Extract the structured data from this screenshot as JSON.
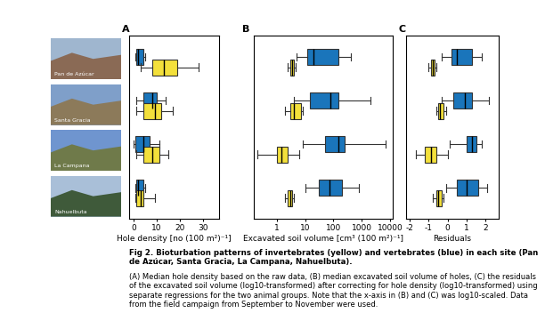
{
  "sites": [
    "Pan de Azúcar",
    "Santa Gracia",
    "La Campana",
    "Nahuelbuta"
  ],
  "chart_data": [
    {
      "type": "boxplot",
      "title": "A",
      "xlabel": "Hole density [no (100 m²)⁻¹]",
      "orientation": "horizontal",
      "tick_labels": "x",
      "xlim": [
        -2,
        37
      ],
      "xticks": [
        0,
        10,
        20,
        30
      ],
      "series": [
        {
          "color": "#1a75bb",
          "values": [
            {
              "whislo": 0.5,
              "q1": 1,
              "med": 2,
              "q3": 4,
              "whishi": 5
            },
            {
              "whislo": 1,
              "q1": 4,
              "med": 8,
              "q3": 10,
              "whishi": 14
            },
            {
              "whislo": 0,
              "q1": 0.5,
              "med": 4,
              "q3": 7,
              "whishi": 11
            },
            {
              "whislo": 0.5,
              "q1": 1,
              "med": 2,
              "q3": 4,
              "whishi": 5
            }
          ]
        },
        {
          "color": "#f3e03b",
          "values": [
            {
              "whislo": 3,
              "q1": 8,
              "med": 13,
              "q3": 19,
              "whishi": 28
            },
            {
              "whislo": 1,
              "q1": 4,
              "med": 9,
              "q3": 12,
              "whishi": 17
            },
            {
              "whislo": 1,
              "q1": 4,
              "med": 8,
              "q3": 11,
              "whishi": 15
            },
            {
              "whislo": 0.5,
              "q1": 1,
              "med": 3,
              "q3": 4,
              "whishi": 9
            }
          ]
        }
      ]
    },
    {
      "type": "boxplot",
      "title": "B",
      "xlabel": "Excavated soil volume [cm³ (100 m²)⁻¹]",
      "orientation": "horizontal",
      "tick_labels": "x",
      "log": "x",
      "xlim": [
        0.15,
        12000
      ],
      "xticks": [
        1,
        10,
        100,
        1000,
        10000
      ],
      "series": [
        {
          "color": "#1a75bb",
          "values": [
            {
              "whislo": 5,
              "q1": 12,
              "med": 20,
              "q3": 150,
              "whishi": 400
            },
            {
              "whislo": 4,
              "q1": 15,
              "med": 80,
              "q3": 150,
              "whishi": 2000
            },
            {
              "whislo": 8,
              "q1": 50,
              "med": 150,
              "q3": 250,
              "whishi": 7000
            },
            {
              "whislo": 10,
              "q1": 30,
              "med": 70,
              "q3": 200,
              "whishi": 800
            }
          ]
        },
        {
          "color": "#f3e03b",
          "values": [
            {
              "whislo": 2.5,
              "q1": 3,
              "med": 3.5,
              "q3": 4,
              "whishi": 4.5
            },
            {
              "whislo": 2,
              "q1": 3,
              "med": 4,
              "q3": 7,
              "whishi": 8
            },
            {
              "whislo": 0.2,
              "q1": 1,
              "med": 1.5,
              "q3": 2.5,
              "whishi": 6
            },
            {
              "whislo": 2,
              "q1": 2.5,
              "med": 3,
              "q3": 3.5,
              "whishi": 4
            }
          ]
        }
      ]
    },
    {
      "type": "boxplot",
      "title": "C",
      "xlabel": "Residuals",
      "orientation": "horizontal",
      "tick_labels": "x",
      "xlim": [
        -2.2,
        2.7
      ],
      "xticks": [
        -2,
        -1,
        0,
        1,
        2
      ],
      "series": [
        {
          "color": "#1a75bb",
          "values": [
            {
              "whislo": -0.3,
              "q1": 0.2,
              "med": 0.5,
              "q3": 1.3,
              "whishi": 1.8
            },
            {
              "whislo": -0.3,
              "q1": 0.3,
              "med": 0.9,
              "q3": 1.3,
              "whishi": 2.2
            },
            {
              "whislo": 0.1,
              "q1": 1.0,
              "med": 1.3,
              "q3": 1.5,
              "whishi": 1.8
            },
            {
              "whislo": -0.1,
              "q1": 0.5,
              "med": 1.0,
              "q3": 1.6,
              "whishi": 2.1
            }
          ]
        },
        {
          "color": "#f3e03b",
          "values": [
            {
              "whislo": -1.0,
              "q1": -0.9,
              "med": -0.8,
              "q3": -0.7,
              "whishi": -0.6
            },
            {
              "whislo": -0.6,
              "q1": -0.5,
              "med": -0.4,
              "q3": -0.2,
              "whishi": -0.1
            },
            {
              "whislo": -1.7,
              "q1": -1.2,
              "med": -0.9,
              "q3": -0.6,
              "whishi": 0.0
            },
            {
              "whislo": -0.8,
              "q1": -0.6,
              "med": -0.5,
              "q3": -0.3,
              "whishi": -0.2
            }
          ]
        }
      ]
    }
  ],
  "caption": {
    "title": "Fig 2. Bioturbation patterns of invertebrates (yellow) and vertebrates (blue) in each site (Pan de Azúcar, Santa Gracia, La Campana, Nahuelbuta).",
    "text": "(A) Median hole density based on the raw data, (B) median excavated soil volume of holes, (C) the residuals of the excavated soil volume (log10-transformed) after correcting for hole density (log10-transformed) using separate regressions for the two animal groups. Note that the x-axis in (B) and (C) was log10-scaled. Data from the field campaign from September to November were used."
  }
}
